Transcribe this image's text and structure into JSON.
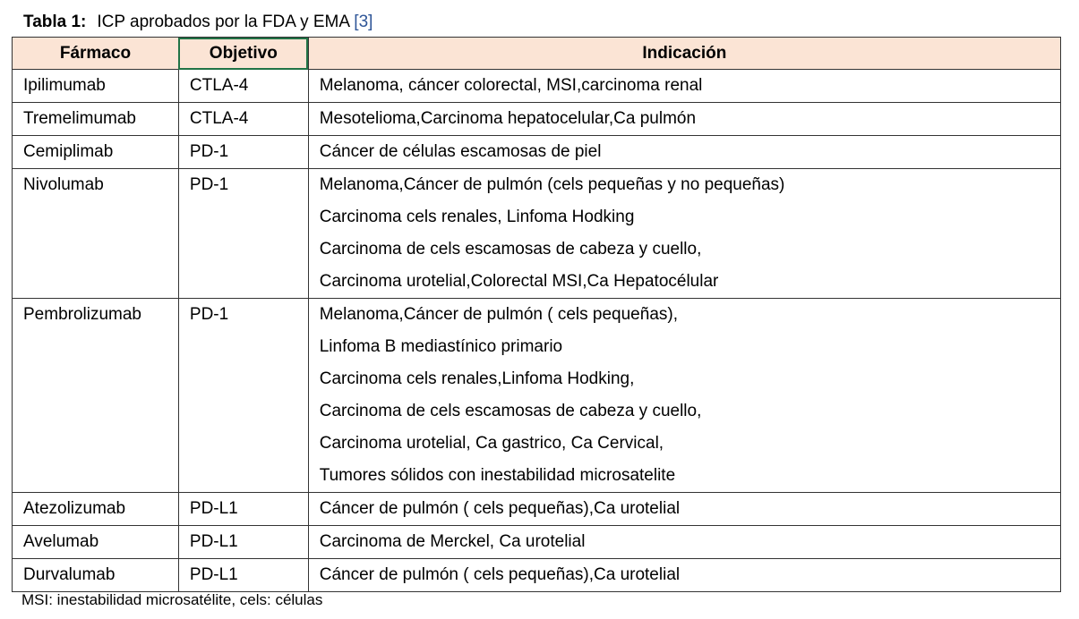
{
  "caption": {
    "label": "Tabla 1:",
    "text": "ICP aprobados por la FDA y EMA",
    "ref": "[3]"
  },
  "table": {
    "headers": [
      "Fármaco",
      "Objetivo",
      "Indicación"
    ],
    "rows": [
      [
        "Ipilimumab",
        "CTLA-4",
        [
          "Melanoma, cáncer colorectal, MSI,carcinoma renal"
        ]
      ],
      [
        "Tremelimumab",
        "CTLA-4",
        [
          "Mesotelioma,Carcinoma hepatocelular,Ca pulmón"
        ]
      ],
      [
        "Cemiplimab",
        "PD-1",
        [
          "Cáncer de células escamosas de piel"
        ]
      ],
      [
        "Nivolumab",
        "PD-1",
        [
          "Melanoma,Cáncer de pulmón (cels pequeñas y no pequeñas)",
          "Carcinoma cels renales, Linfoma Hodking",
          "Carcinoma de cels escamosas de cabeza y cuello,",
          "Carcinoma urotelial,Colorectal MSI,Ca Hepatocélular"
        ]
      ],
      [
        "Pembrolizumab",
        "PD-1",
        [
          "Melanoma,Cáncer de pulmón ( cels pequeñas),",
          "Linfoma B mediastínico primario",
          "Carcinoma cels renales,Linfoma Hodking,",
          "Carcinoma de cels escamosas de cabeza y cuello,",
          "Carcinoma urotelial, Ca gastrico, Ca Cervical,",
          "Tumores sólidos con inestabilidad microsatelite"
        ]
      ],
      [
        "Atezolizumab",
        "PD-L1",
        [
          "Cáncer de pulmón ( cels pequeñas),Ca urotelial"
        ]
      ],
      [
        "Avelumab",
        "PD-L1",
        [
          "Carcinoma de Merckel, Ca urotelial"
        ]
      ],
      [
        "Durvalumab",
        "PD-L1",
        [
          "Cáncer de pulmón ( cels pequeñas),Ca urotelial"
        ]
      ]
    ]
  },
  "footnote": "MSI: inestabilidad microsatélite, cels: células"
}
